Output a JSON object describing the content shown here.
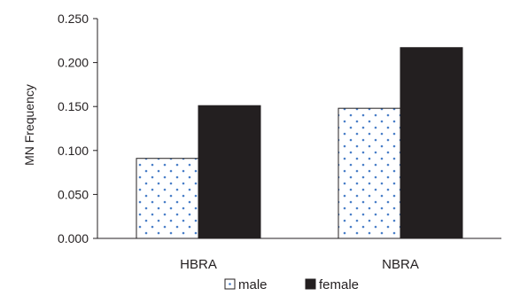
{
  "chart_data": {
    "type": "bar",
    "categories": [
      "HBRA",
      "NBRA"
    ],
    "series": [
      {
        "name": "male",
        "values": [
          0.091,
          0.148
        ],
        "pattern": "dotted",
        "color": "#ffffff",
        "dot_color": "#4a7fc8",
        "stroke": "#231f20"
      },
      {
        "name": "female",
        "values": [
          0.151,
          0.217
        ],
        "pattern": "solid",
        "color": "#231f20",
        "stroke": "#231f20"
      }
    ],
    "ylabel": "MN Frequency",
    "xlabel": "",
    "title": "",
    "ylim": [
      0,
      0.25
    ],
    "yticks": [
      "0.000",
      "0.050",
      "0.100",
      "0.150",
      "0.200",
      "0.250"
    ],
    "ytick_values": [
      0,
      0.05,
      0.1,
      0.15,
      0.2,
      0.25
    ],
    "grid": false,
    "legend_position": "bottom-center"
  }
}
